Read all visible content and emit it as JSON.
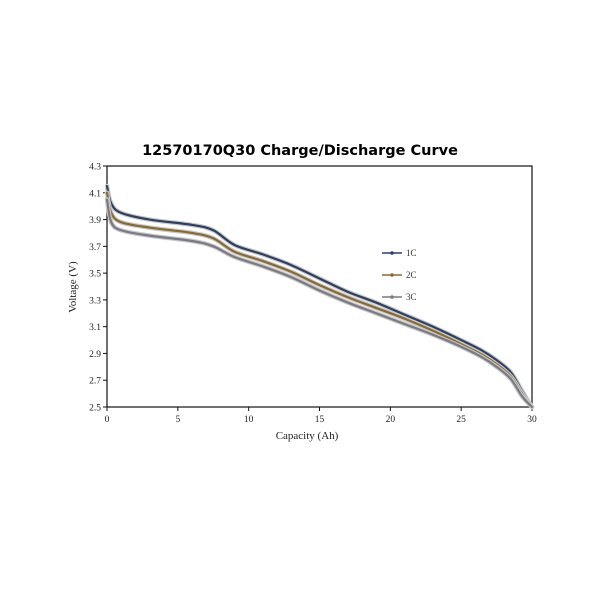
{
  "chart_data": {
    "type": "line",
    "title": "12570170Q30 Charge/Discharge Curve",
    "xlabel": "Capacity (Ah)",
    "ylabel": "Voltage (V)",
    "xlim": [
      0,
      30
    ],
    "ylim": [
      2.5,
      4.3
    ],
    "xticks": [
      "0",
      "5",
      "10",
      "15",
      "20",
      "25",
      "30"
    ],
    "yticks": [
      "2.5",
      "2.7",
      "2.9",
      "3.1",
      "3.3",
      "3.5",
      "3.7",
      "3.9",
      "4.1",
      "4.3"
    ],
    "grid": false,
    "legend_position": "right",
    "series": [
      {
        "name": "1C",
        "color": "#2d3f66",
        "points": [
          [
            0,
            4.15
          ],
          [
            0.3,
            4.02
          ],
          [
            1,
            3.95
          ],
          [
            3,
            3.9
          ],
          [
            6,
            3.86
          ],
          [
            7.5,
            3.82
          ],
          [
            9,
            3.71
          ],
          [
            11,
            3.64
          ],
          [
            13,
            3.56
          ],
          [
            15,
            3.46
          ],
          [
            17,
            3.36
          ],
          [
            19,
            3.28
          ],
          [
            21,
            3.19
          ],
          [
            23,
            3.1
          ],
          [
            25,
            3.0
          ],
          [
            26.5,
            2.92
          ],
          [
            27.5,
            2.85
          ],
          [
            28.5,
            2.76
          ],
          [
            29.3,
            2.62
          ],
          [
            30,
            2.5
          ]
        ]
      },
      {
        "name": "2C",
        "color": "#8a6a2e",
        "points": [
          [
            0,
            4.1
          ],
          [
            0.3,
            3.95
          ],
          [
            1,
            3.88
          ],
          [
            3,
            3.84
          ],
          [
            6,
            3.8
          ],
          [
            7.5,
            3.76
          ],
          [
            9,
            3.66
          ],
          [
            11,
            3.59
          ],
          [
            13,
            3.51
          ],
          [
            15,
            3.41
          ],
          [
            17,
            3.32
          ],
          [
            19,
            3.24
          ],
          [
            21,
            3.16
          ],
          [
            23,
            3.07
          ],
          [
            25,
            2.97
          ],
          [
            26.5,
            2.89
          ],
          [
            27.5,
            2.82
          ],
          [
            28.5,
            2.73
          ],
          [
            29.3,
            2.6
          ],
          [
            30,
            2.5
          ]
        ]
      },
      {
        "name": "3C",
        "color": "#7a7a86",
        "points": [
          [
            0,
            4.05
          ],
          [
            0.3,
            3.88
          ],
          [
            1,
            3.82
          ],
          [
            3,
            3.78
          ],
          [
            6,
            3.74
          ],
          [
            7.5,
            3.7
          ],
          [
            9,
            3.62
          ],
          [
            11,
            3.55
          ],
          [
            13,
            3.47
          ],
          [
            15,
            3.37
          ],
          [
            17,
            3.28
          ],
          [
            19,
            3.2
          ],
          [
            21,
            3.12
          ],
          [
            23,
            3.04
          ],
          [
            25,
            2.95
          ],
          [
            26.5,
            2.87
          ],
          [
            27.5,
            2.8
          ],
          [
            28.5,
            2.71
          ],
          [
            29.3,
            2.58
          ],
          [
            30,
            2.5
          ]
        ]
      }
    ]
  }
}
